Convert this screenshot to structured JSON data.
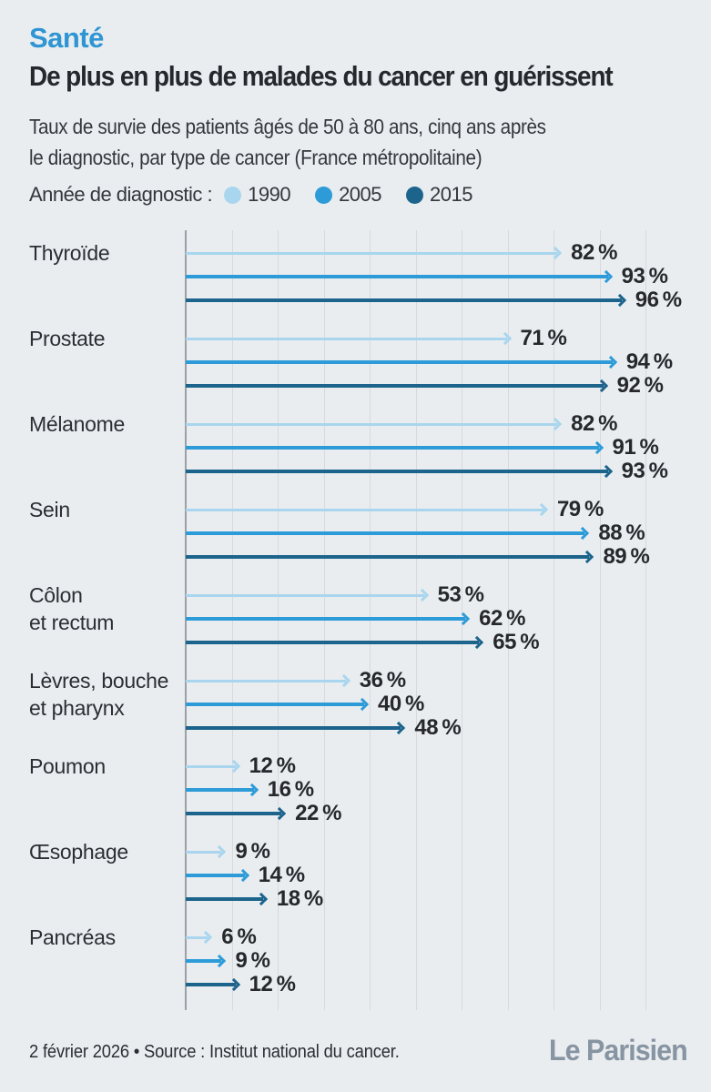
{
  "page": {
    "background": "#e9edf0"
  },
  "header": {
    "kicker": "Santé",
    "kicker_color": "#2f95d3",
    "title": "De plus en plus de malades du cancer en guérissent",
    "subtitle_line1": "Taux de survie des patients âgés de 50 à 80 ans, cinq ans après",
    "subtitle_line2": "le diagnostic, par type de cancer (France métropolitaine)"
  },
  "legend": {
    "label": "Année de diagnostic :"
  },
  "chart_data": {
    "type": "bar",
    "orientation": "horizontal",
    "title": "De plus en plus de malades du cancer en guérissent",
    "categories": [
      "Thyroïde",
      "Prostate",
      "Mélanome",
      "Sein",
      "Côlon et rectum",
      "Lèvres, bouche et pharynx",
      "Poumon",
      "Œsophage",
      "Pancréas"
    ],
    "category_lines": [
      [
        "Thyroïde"
      ],
      [
        "Prostate"
      ],
      [
        "Mélanome"
      ],
      [
        "Sein"
      ],
      [
        "Côlon",
        "et rectum"
      ],
      [
        "Lèvres, bouche",
        "et pharynx"
      ],
      [
        "Poumon"
      ],
      [
        "Œsophage"
      ],
      [
        "Pancréas"
      ]
    ],
    "series": [
      {
        "name": "1990",
        "color": "#a9d6ee",
        "values": [
          82,
          71,
          82,
          79,
          53,
          36,
          12,
          9,
          6
        ]
      },
      {
        "name": "2005",
        "color": "#2d9bd8",
        "values": [
          93,
          94,
          91,
          88,
          62,
          40,
          16,
          14,
          9
        ]
      },
      {
        "name": "2015",
        "color": "#1c648c",
        "values": [
          96,
          92,
          93,
          89,
          65,
          48,
          22,
          18,
          12
        ]
      }
    ],
    "unit": "%",
    "value_suffix": "%",
    "xlim": [
      0,
      100
    ],
    "gridlines_every": 10,
    "grid": true,
    "legend_position": "top",
    "axis_color": "#9aa1a8",
    "gridline_color": "#d6dade"
  },
  "footer": {
    "credit": "2 février 2026 • Source : Institut national du cancer.",
    "logo": "Le Parisien"
  }
}
